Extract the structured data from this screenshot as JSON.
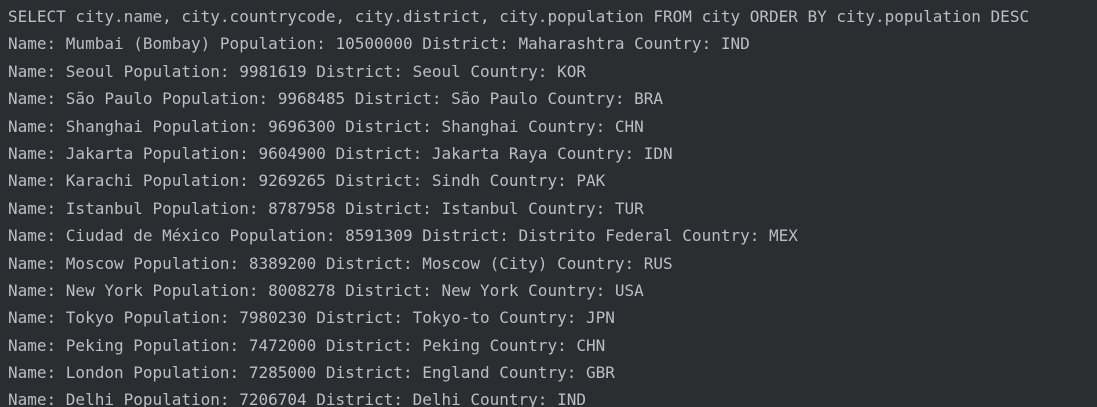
{
  "console": {
    "query": "SELECT city.name, city.countrycode, city.district, city.population FROM city ORDER BY city.population DESC",
    "lines": [
      "Name: Mumbai (Bombay) Population: 10500000 District: Maharashtra Country: IND",
      "Name: Seoul Population: 9981619 District: Seoul Country: KOR",
      "Name: São Paulo Population: 9968485 District: São Paulo Country: BRA",
      "Name: Shanghai Population: 9696300 District: Shanghai Country: CHN",
      "Name: Jakarta Population: 9604900 District: Jakarta Raya Country: IDN",
      "Name: Karachi Population: 9269265 District: Sindh Country: PAK",
      "Name: Istanbul Population: 8787958 District: Istanbul Country: TUR",
      "Name: Ciudad de México Population: 8591309 District: Distrito Federal Country: MEX",
      "Name: Moscow Population: 8389200 District: Moscow (City) Country: RUS",
      "Name: New York Population: 8008278 District: New York Country: USA",
      "Name: Tokyo Population: 7980230 District: Tokyo-to Country: JPN",
      "Name: Peking Population: 7472000 District: Peking Country: CHN",
      "Name: London Population: 7285000 District: England Country: GBR",
      "Name: Delhi Population: 7206704 District: Delhi Country: IND"
    ]
  }
}
